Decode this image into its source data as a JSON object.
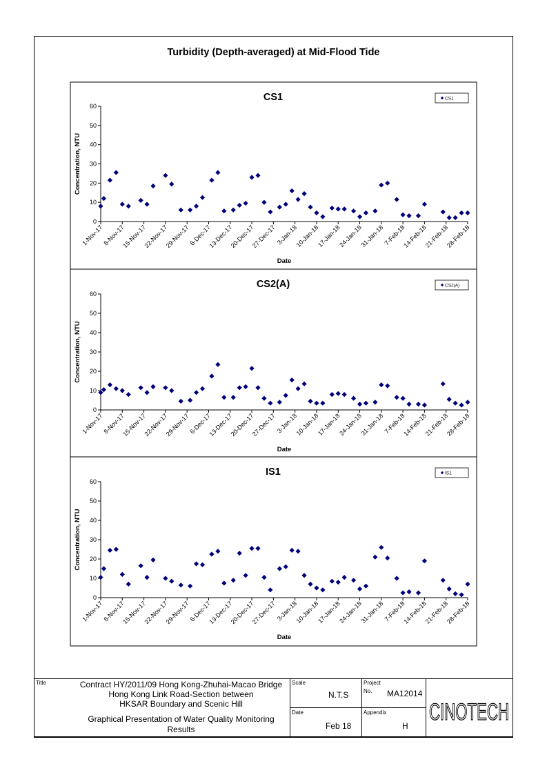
{
  "page": {
    "title": "Turbidity (Depth-averaged) at Mid-Flood Tide"
  },
  "chart_data": [
    {
      "type": "scatter",
      "title": "CS1",
      "xlabel": "Date",
      "ylabel": "Concentration, NTU",
      "ylim": [
        0,
        60
      ],
      "yticks": [
        0,
        10,
        20,
        30,
        40,
        50,
        60
      ],
      "grid": false,
      "legend": "top-right",
      "x_ticks": [
        "1-Nov-17",
        "8-Nov-17",
        "15-Nov-17",
        "22-Nov-17",
        "29-Nov-17",
        "6-Dec-17",
        "13-Dec-17",
        "20-Dec-17",
        "27-Dec-17",
        "3-Jan-18",
        "10-Jan-18",
        "17-Jan-18",
        "24-Jan-18",
        "31-Jan-18",
        "7-Feb-18",
        "14-Feb-18",
        "21-Feb-18",
        "28-Feb-18"
      ],
      "series": [
        {
          "name": "CS1",
          "color": "#00007a",
          "x": [
            "1-Nov-17",
            "2-Nov-17",
            "4-Nov-17",
            "6-Nov-17",
            "8-Nov-17",
            "10-Nov-17",
            "14-Nov-17",
            "16-Nov-17",
            "18-Nov-17",
            "22-Nov-17",
            "24-Nov-17",
            "27-Nov-17",
            "30-Nov-17",
            "2-Dec-17",
            "4-Dec-17",
            "7-Dec-17",
            "9-Dec-17",
            "11-Dec-17",
            "14-Dec-17",
            "16-Dec-17",
            "18-Dec-17",
            "20-Dec-17",
            "22-Dec-17",
            "24-Dec-17",
            "26-Dec-17",
            "29-Dec-17",
            "31-Dec-17",
            "2-Jan-18",
            "4-Jan-18",
            "6-Jan-18",
            "8-Jan-18",
            "10-Jan-18",
            "12-Jan-18",
            "15-Jan-18",
            "17-Jan-18",
            "19-Jan-18",
            "22-Jan-18",
            "24-Jan-18",
            "26-Jan-18",
            "29-Jan-18",
            "31-Jan-18",
            "2-Feb-18",
            "5-Feb-18",
            "7-Feb-18",
            "9-Feb-18",
            "12-Feb-18",
            "14-Feb-18",
            "20-Feb-18",
            "22-Feb-18",
            "24-Feb-18",
            "26-Feb-18",
            "28-Feb-18"
          ],
          "y": [
            8,
            12,
            21.5,
            25.5,
            9,
            8,
            11,
            9,
            18.5,
            24,
            19.5,
            6,
            6,
            8,
            12.5,
            21.5,
            25.5,
            5.5,
            6,
            8.5,
            9.5,
            23,
            24,
            10,
            5,
            7.5,
            9,
            16,
            11.5,
            14.5,
            7.5,
            4.5,
            2.5,
            7,
            6.5,
            6.5,
            5.5,
            2.5,
            4.5,
            5.5,
            19,
            20,
            11.5,
            3.5,
            3,
            3,
            9,
            5,
            2,
            2,
            4.5,
            4.5
          ]
        }
      ]
    },
    {
      "type": "scatter",
      "title": "CS2(A)",
      "xlabel": "Date",
      "ylabel": "Concentration, NTU",
      "ylim": [
        0,
        60
      ],
      "yticks": [
        0,
        10,
        20,
        30,
        40,
        50,
        60
      ],
      "grid": false,
      "legend": "top-right",
      "x_ticks": [
        "1-Nov-17",
        "8-Nov-17",
        "15-Nov-17",
        "22-Nov-17",
        "29-Nov-17",
        "6-Dec-17",
        "13-Dec-17",
        "20-Dec-17",
        "27-Dec-17",
        "3-Jan-18",
        "10-Jan-18",
        "17-Jan-18",
        "24-Jan-18",
        "31-Jan-18",
        "7-Feb-18",
        "14-Feb-18",
        "21-Feb-18",
        "28-Feb-18"
      ],
      "series": [
        {
          "name": "CS2(A)",
          "color": "#00007a",
          "x": [
            "1-Nov-17",
            "2-Nov-17",
            "4-Nov-17",
            "6-Nov-17",
            "8-Nov-17",
            "10-Nov-17",
            "14-Nov-17",
            "16-Nov-17",
            "18-Nov-17",
            "22-Nov-17",
            "24-Nov-17",
            "27-Nov-17",
            "30-Nov-17",
            "2-Dec-17",
            "4-Dec-17",
            "7-Dec-17",
            "9-Dec-17",
            "11-Dec-17",
            "14-Dec-17",
            "16-Dec-17",
            "18-Dec-17",
            "20-Dec-17",
            "22-Dec-17",
            "24-Dec-17",
            "26-Dec-17",
            "29-Dec-17",
            "31-Dec-17",
            "2-Jan-18",
            "4-Jan-18",
            "6-Jan-18",
            "8-Jan-18",
            "10-Jan-18",
            "12-Jan-18",
            "15-Jan-18",
            "17-Jan-18",
            "19-Jan-18",
            "22-Jan-18",
            "24-Jan-18",
            "26-Jan-18",
            "29-Jan-18",
            "31-Jan-18",
            "2-Feb-18",
            "5-Feb-18",
            "7-Feb-18",
            "9-Feb-18",
            "12-Feb-18",
            "14-Feb-18",
            "20-Feb-18",
            "22-Feb-18",
            "24-Feb-18",
            "26-Feb-18",
            "28-Feb-18"
          ],
          "y": [
            9,
            10.5,
            13,
            11,
            10,
            8,
            11.5,
            9,
            12,
            11.5,
            10,
            4.5,
            5,
            9,
            11,
            17.5,
            23.5,
            6.5,
            6.5,
            11.5,
            12,
            21.5,
            11.5,
            6,
            3.5,
            4,
            7.5,
            15.5,
            11,
            13.5,
            4.5,
            3.5,
            3.5,
            8,
            8.5,
            8,
            6,
            3,
            3.5,
            4,
            13,
            12.5,
            6.5,
            6,
            3,
            3,
            2.5,
            13.5,
            5.5,
            3.5,
            2.5,
            4
          ]
        }
      ]
    },
    {
      "type": "scatter",
      "title": "IS1",
      "xlabel": "Date",
      "ylabel": "Concentration, NTU",
      "ylim": [
        0,
        60
      ],
      "yticks": [
        0,
        10,
        20,
        30,
        40,
        50,
        60
      ],
      "grid": false,
      "legend": "top-right",
      "x_ticks": [
        "1-Nov-17",
        "8-Nov-17",
        "15-Nov-17",
        "22-Nov-17",
        "29-Nov-17",
        "6-Dec-17",
        "13-Dec-17",
        "20-Dec-17",
        "27-Dec-17",
        "3-Jan-18",
        "10-Jan-18",
        "17-Jan-18",
        "24-Jan-18",
        "31-Jan-18",
        "7-Feb-18",
        "14-Feb-18",
        "21-Feb-18",
        "28-Feb-18"
      ],
      "series": [
        {
          "name": "IS1",
          "color": "#00007a",
          "x": [
            "1-Nov-17",
            "2-Nov-17",
            "4-Nov-17",
            "6-Nov-17",
            "8-Nov-17",
            "10-Nov-17",
            "14-Nov-17",
            "16-Nov-17",
            "18-Nov-17",
            "22-Nov-17",
            "24-Nov-17",
            "27-Nov-17",
            "30-Nov-17",
            "2-Dec-17",
            "4-Dec-17",
            "7-Dec-17",
            "9-Dec-17",
            "11-Dec-17",
            "14-Dec-17",
            "16-Dec-17",
            "18-Dec-17",
            "20-Dec-17",
            "22-Dec-17",
            "24-Dec-17",
            "26-Dec-17",
            "29-Dec-17",
            "31-Dec-17",
            "2-Jan-18",
            "4-Jan-18",
            "6-Jan-18",
            "8-Jan-18",
            "10-Jan-18",
            "12-Jan-18",
            "15-Jan-18",
            "17-Jan-18",
            "19-Jan-18",
            "22-Jan-18",
            "24-Jan-18",
            "26-Jan-18",
            "29-Jan-18",
            "31-Jan-18",
            "2-Feb-18",
            "5-Feb-18",
            "7-Feb-18",
            "9-Feb-18",
            "12-Feb-18",
            "14-Feb-18",
            "20-Feb-18",
            "22-Feb-18",
            "24-Feb-18",
            "26-Feb-18",
            "28-Feb-18"
          ],
          "y": [
            10.5,
            15,
            24.5,
            25,
            12,
            7,
            16.5,
            10.5,
            19.5,
            10,
            8.5,
            6.5,
            6,
            17.5,
            17,
            22.5,
            24,
            7.5,
            9,
            23,
            11.5,
            25.5,
            25.5,
            10.5,
            4,
            15,
            16,
            24.5,
            24,
            11.5,
            7,
            5,
            4,
            8.5,
            8,
            10.5,
            9,
            4.5,
            6,
            21,
            26,
            20.5,
            10,
            2.5,
            3,
            2.5,
            19,
            9,
            4.5,
            2,
            1.5,
            7
          ]
        }
      ]
    }
  ],
  "title_block": {
    "title_label": "Title",
    "title_line1": "Contract HY/2011/09 Hong Kong-Zhuhai-Macao Bridge",
    "title_line2": "Hong Kong Link Road-Section between",
    "title_line3": "HKSAR Boundary and Scenic Hill",
    "subtitle_line1": "Graphical Presentation of Water Quality Monitoring",
    "subtitle_line2": "Results",
    "scale_label": "Scale",
    "scale_value": "N.T.S",
    "project_label": "Project",
    "no_label": "No.",
    "project_value": "MA12014",
    "date_label": "Date",
    "date_value": "Feb 18",
    "appendix_label": "Appendix",
    "appendix_value": "H",
    "logo_text": "CINOTECH"
  }
}
